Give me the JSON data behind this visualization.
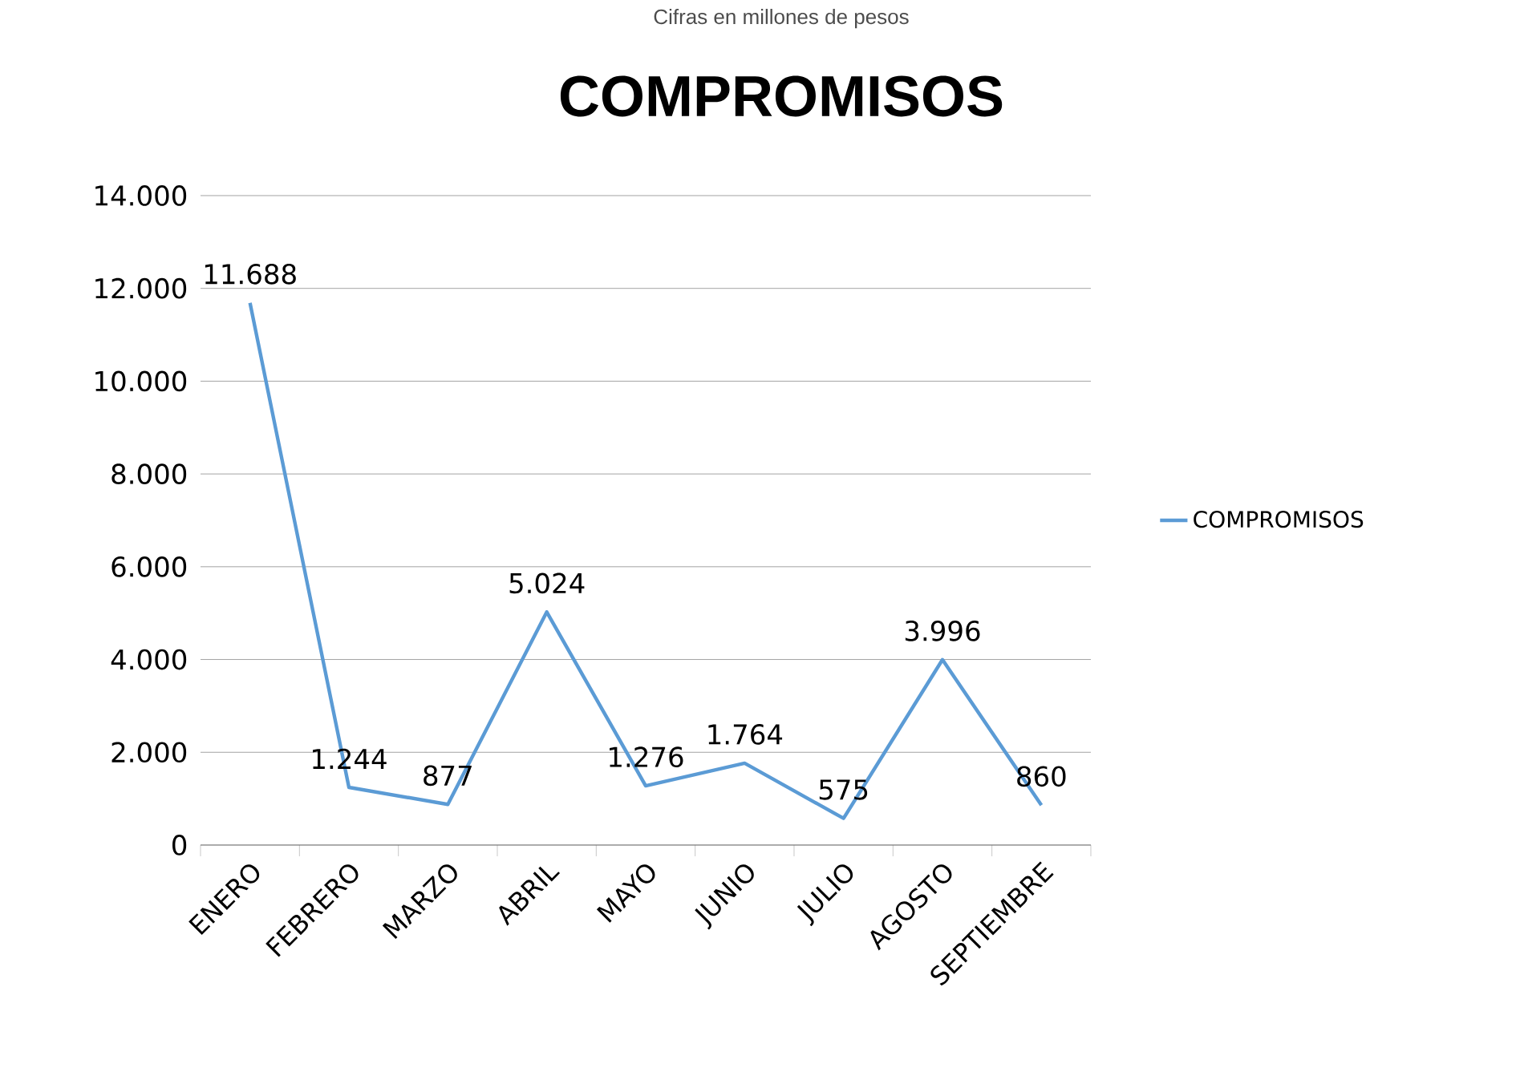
{
  "chart_data": {
    "type": "line",
    "title": "COMPROMISOS",
    "subtitle": "Cifras en millones de pesos",
    "categories": [
      "ENERO",
      "FEBRERO",
      "MARZO",
      "ABRIL",
      "MAYO",
      "JUNIO",
      "JULIO",
      "AGOSTO",
      "SEPTIEMBRE"
    ],
    "series": [
      {
        "name": "COMPROMISOS",
        "color": "#5b9bd5",
        "values": [
          11688,
          1244,
          877,
          5024,
          1276,
          1764,
          575,
          3996,
          860
        ],
        "value_labels": [
          "11.688",
          "1.244",
          "877",
          "5.024",
          "1.276",
          "1.764",
          "575",
          "3.996",
          "860"
        ]
      }
    ],
    "ylim": [
      0,
      14000
    ],
    "yticks": [
      {
        "value": 0,
        "label": "0"
      },
      {
        "value": 2000,
        "label": "2.000"
      },
      {
        "value": 4000,
        "label": "4.000"
      },
      {
        "value": 6000,
        "label": "6.000"
      },
      {
        "value": 8000,
        "label": "8.000"
      },
      {
        "value": 10000,
        "label": "10.000"
      },
      {
        "value": 12000,
        "label": "12.000"
      },
      {
        "value": 14000,
        "label": "14.000"
      }
    ],
    "grid": "y",
    "legend": "right",
    "marker": "none",
    "line_style": "solid"
  }
}
